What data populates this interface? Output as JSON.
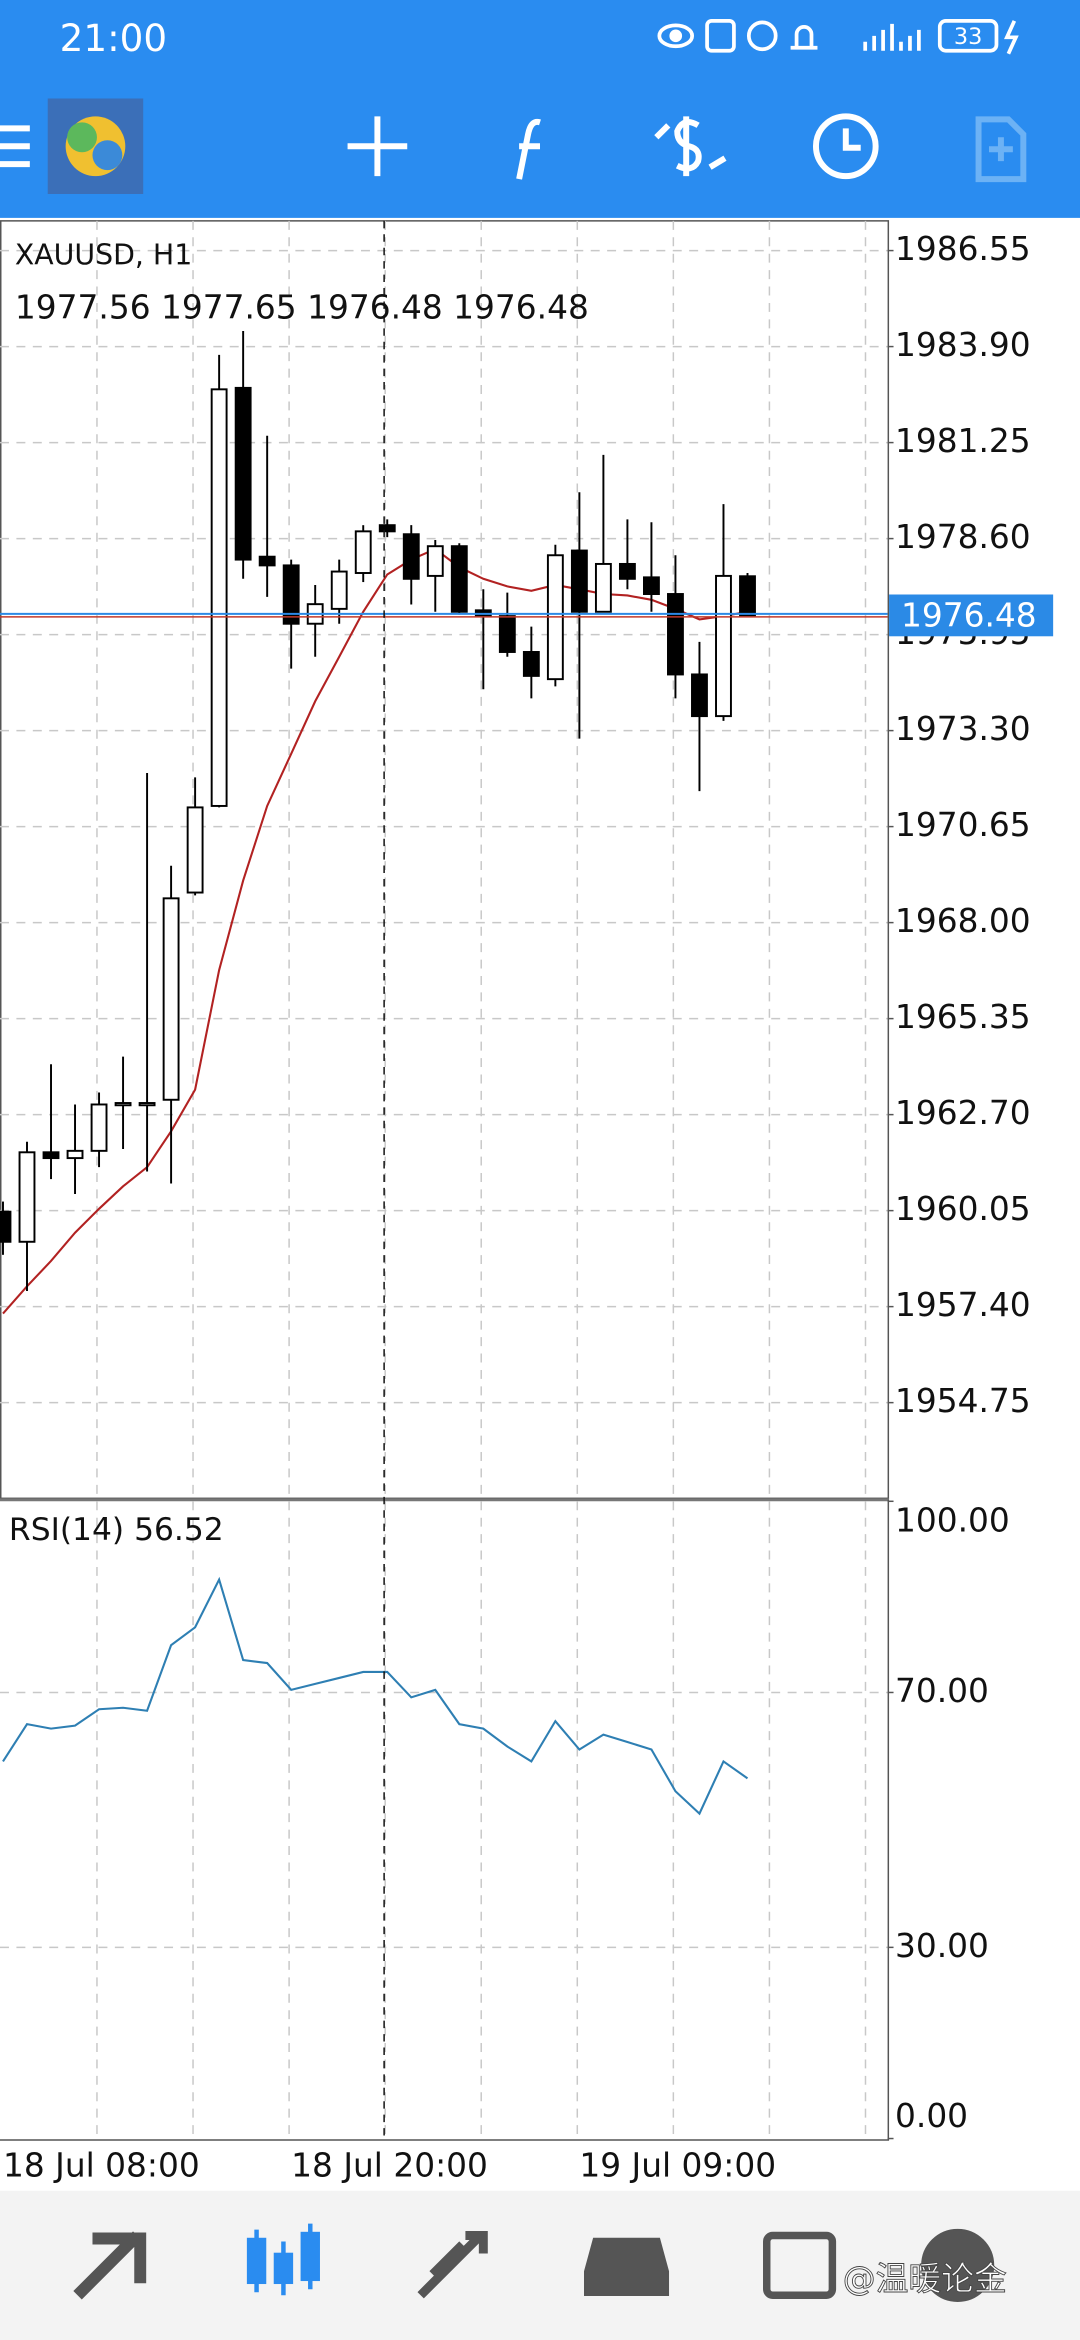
{
  "status_bar": {
    "time": "21:00",
    "battery": "33"
  },
  "chart_data": [
    {
      "type": "candlestick",
      "title": "XAUUSD, H1",
      "subtitle": "1977.56 1977.65 1976.48 1976.48",
      "categories": [
        "18 Jul 08:00",
        null,
        null,
        null,
        null,
        null,
        null,
        null,
        null,
        null,
        null,
        null,
        "18 Jul 20:00",
        null,
        null,
        null,
        null,
        null,
        null,
        null,
        null,
        null,
        null,
        null,
        "19 Jul 09:00",
        null,
        null,
        null,
        null,
        null,
        null,
        null
      ],
      "open": [
        1960.02,
        1959.19,
        1961.66,
        1961.5,
        1961.7,
        1963.02,
        1963.02,
        1963.11,
        1968.83,
        1971.22,
        1982.76,
        1978.1,
        1977.86,
        1976.25,
        1976.66,
        1977.65,
        1978.97,
        1978.72,
        1977.57,
        1978.39,
        1976.62,
        1976.46,
        1975.47,
        1974.72,
        1978.27,
        1976.58,
        1977.9,
        1977.53,
        1977.07,
        1974.85,
        1973.7,
        1977.56
      ],
      "high": [
        1960.3,
        1961.95,
        1964.09,
        1962.98,
        1963.31,
        1964.3,
        1972.13,
        1969.57,
        1972.01,
        1983.67,
        1984.33,
        1981.44,
        1978.02,
        1977.32,
        1978.02,
        1978.97,
        1979.13,
        1978.97,
        1978.56,
        1978.47,
        1977.2,
        1977.11,
        1976.17,
        1978.43,
        1979.88,
        1980.91,
        1979.13,
        1979.05,
        1978.14,
        1975.75,
        1979.55,
        1977.65
      ],
      "low": [
        1958.83,
        1957.83,
        1960.92,
        1960.51,
        1961.25,
        1961.75,
        1961.13,
        1960.8,
        1968.75,
        1971.18,
        1977.49,
        1976.99,
        1975.01,
        1975.34,
        1976.25,
        1977.4,
        1978.64,
        1976.78,
        1976.58,
        1976.5,
        1974.44,
        1975.34,
        1974.19,
        1974.52,
        1973.08,
        1976.58,
        1977.2,
        1976.58,
        1974.19,
        1971.63,
        1973.57,
        1976.48
      ],
      "close": [
        1959.19,
        1961.66,
        1961.5,
        1961.7,
        1962.98,
        1963.02,
        1963.02,
        1968.67,
        1971.18,
        1982.72,
        1978.02,
        1977.86,
        1976.25,
        1976.79,
        1977.69,
        1978.8,
        1978.8,
        1977.49,
        1978.39,
        1976.58,
        1976.46,
        1975.47,
        1974.81,
        1978.14,
        1976.58,
        1977.9,
        1977.49,
        1977.07,
        1974.85,
        1973.7,
        1977.57,
        1976.48
      ],
      "up_color": "#ffffff",
      "down_color": "#000000",
      "series": [
        {
          "color": "#b22222",
          "values": [
            1957.21,
            1957.96,
            1958.66,
            1959.44,
            1960.1,
            1960.72,
            1961.25,
            1962.24,
            1963.39,
            1966.69,
            1969.16,
            1971.22,
            1972.66,
            1974.11,
            1975.34,
            1976.58,
            1977.61,
            1978.02,
            1978.31,
            1977.81,
            1977.49,
            1977.28,
            1977.16,
            1977.32,
            1977.2,
            1977.07,
            1977.03,
            1976.91,
            1976.66,
            1976.37,
            1976.46,
            1976.58
          ]
        }
      ],
      "last_price": 1976.48,
      "last_price_color": "#2b8ae6",
      "ylim": [
        1952.15,
        1987.37
      ],
      "yticks": [
        1986.55,
        {
          "value": 1983.9,
          "label": "1983.90"
        },
        1981.25,
        {
          "value": 1978.6,
          "label": "1978.60"
        },
        1975.95,
        {
          "value": 1973.3,
          "label": "1973.30"
        },
        1970.65,
        {
          "value": 1968.0,
          "label": "1968.00"
        },
        1965.35,
        {
          "value": 1962.7,
          "label": "1962.70"
        },
        1960.05,
        {
          "value": 1957.4,
          "label": "1957.40"
        },
        1954.75
      ],
      "grid": true
    },
    {
      "type": "line",
      "title": "RSI(14) 56.52",
      "series": [
        {
          "color": "#2e7fb3",
          "values": [
            59.18,
            65.03,
            64.33,
            64.8,
            67.37,
            67.6,
            67.13,
            77.43,
            80.23,
            87.72,
            75.09,
            74.62,
            70.41,
            71.35,
            72.28,
            73.22,
            73.22,
            69.24,
            70.41,
            65.03,
            64.33,
            61.52,
            59.18,
            65.5,
            61.05,
            63.39,
            62.22,
            61.05,
            54.5,
            50.99,
            59.18,
            56.52
          ]
        }
      ],
      "ylim": [
        0,
        100
      ],
      "yticks": [
        {
          "value": 100,
          "label": "100.00"
        },
        {
          "value": 70,
          "label": "70.00"
        },
        {
          "value": 30,
          "label": "30.00"
        },
        {
          "value": 0,
          "label": "0.00"
        }
      ],
      "grid": true
    }
  ],
  "watermark": "@温暖论金"
}
